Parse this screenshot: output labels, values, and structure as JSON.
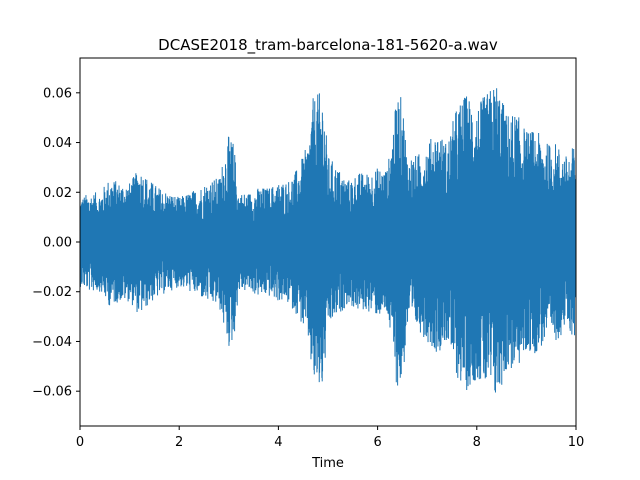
{
  "chart_data": {
    "type": "line",
    "title": "DCASE2018_tram-barcelona-181-5620-a.wav",
    "xlabel": "Time",
    "ylabel": "",
    "xlim": [
      0,
      10
    ],
    "ylim": [
      -0.074,
      0.074
    ],
    "x_ticks": [
      0,
      2,
      4,
      6,
      8,
      10
    ],
    "x_tick_labels": [
      "0",
      "2",
      "4",
      "6",
      "8",
      "10"
    ],
    "y_ticks": [
      -0.06,
      -0.04,
      -0.02,
      0.0,
      0.02,
      0.04,
      0.06
    ],
    "y_tick_labels": [
      "−0.06",
      "−0.04",
      "−0.02",
      "0.00",
      "0.02",
      "0.04",
      "0.06"
    ],
    "grid": false,
    "legend": false,
    "series": [
      {
        "color": "#1f77b4",
        "envelope_time": [
          0,
          0.2,
          0.4,
          0.6,
          0.8,
          1.0,
          1.2,
          1.4,
          1.6,
          1.8,
          2.0,
          2.2,
          2.4,
          2.6,
          2.8,
          3.0,
          3.1,
          3.2,
          3.4,
          3.6,
          3.8,
          4.0,
          4.2,
          4.4,
          4.6,
          4.7,
          4.8,
          4.9,
          5.0,
          5.2,
          5.4,
          5.6,
          5.8,
          6.0,
          6.2,
          6.4,
          6.5,
          6.6,
          6.8,
          7.0,
          7.2,
          7.4,
          7.6,
          7.8,
          8.0,
          8.2,
          8.4,
          8.6,
          8.8,
          9.0,
          9.2,
          9.4,
          9.6,
          9.8,
          10.0
        ],
        "envelope_amplitude": [
          0.018,
          0.02,
          0.02,
          0.026,
          0.024,
          0.024,
          0.03,
          0.025,
          0.022,
          0.02,
          0.018,
          0.02,
          0.022,
          0.025,
          0.026,
          0.043,
          0.04,
          0.02,
          0.02,
          0.022,
          0.022,
          0.024,
          0.025,
          0.03,
          0.04,
          0.058,
          0.06,
          0.06,
          0.035,
          0.03,
          0.025,
          0.028,
          0.028,
          0.03,
          0.03,
          0.06,
          0.058,
          0.035,
          0.035,
          0.04,
          0.045,
          0.04,
          0.055,
          0.06,
          0.055,
          0.06,
          0.065,
          0.052,
          0.052,
          0.045,
          0.045,
          0.04,
          0.04,
          0.035,
          0.04
        ]
      }
    ]
  }
}
